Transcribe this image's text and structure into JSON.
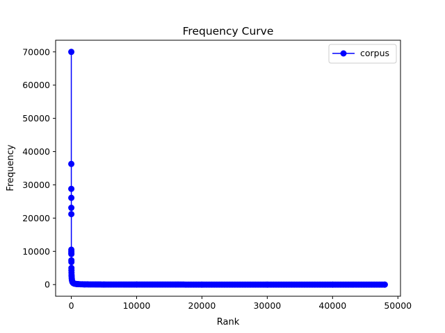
{
  "chart_data": {
    "type": "line",
    "title": "Frequency Curve",
    "xlabel": "Rank",
    "ylabel": "Frequency",
    "xlim": [
      -2400,
      50400
    ],
    "ylim": [
      -3500,
      73500
    ],
    "xticks": [
      0,
      10000,
      20000,
      30000,
      40000,
      50000
    ],
    "yticks": [
      0,
      10000,
      20000,
      30000,
      40000,
      50000,
      60000,
      70000
    ],
    "grid": false,
    "legend_position": "top-right",
    "series": [
      {
        "name": "corpus",
        "color": "#0000ff",
        "marker": "circle",
        "x": [
          1,
          2,
          3,
          4,
          5,
          6,
          7,
          8,
          9,
          10,
          12,
          15,
          20,
          25,
          30,
          40,
          50,
          70,
          100,
          150,
          200,
          300,
          500,
          800,
          1000,
          2000,
          5000,
          10000,
          20000,
          30000,
          40000,
          48000
        ],
        "y": [
          70000,
          36300,
          28800,
          26100,
          23100,
          21200,
          10500,
          10000,
          9500,
          9200,
          7300,
          6800,
          5000,
          4300,
          3600,
          2900,
          2400,
          1800,
          1300,
          900,
          700,
          450,
          280,
          180,
          140,
          70,
          28,
          14,
          7,
          4,
          3,
          2
        ]
      }
    ]
  }
}
